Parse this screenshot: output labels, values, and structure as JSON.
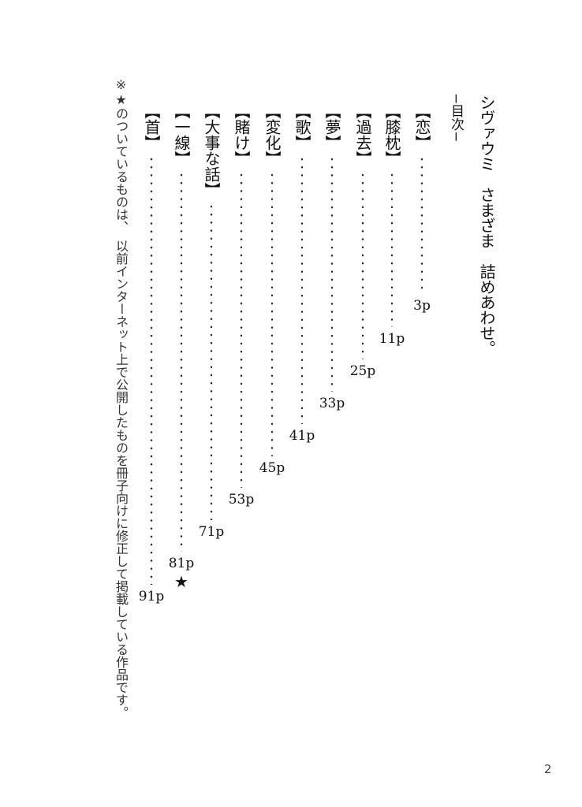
{
  "title": "シヴァウミ　さまざま　詰めあわせ。",
  "toc_heading": "−目次−",
  "entries": [
    {
      "label": "【恋】",
      "page": "3p",
      "marked": false
    },
    {
      "label": "【膝枕】",
      "page": "11p",
      "marked": false
    },
    {
      "label": "【過去】",
      "page": "25p",
      "marked": false
    },
    {
      "label": "【夢】",
      "page": "33p",
      "marked": false
    },
    {
      "label": "【歌】",
      "page": "41p",
      "marked": false
    },
    {
      "label": "【変化】",
      "page": "45p",
      "marked": false
    },
    {
      "label": "【賭け】",
      "page": "53p",
      "marked": false
    },
    {
      "label": "【大事な話】",
      "page": "71p",
      "marked": false
    },
    {
      "label": "【一線】",
      "page": "81p",
      "marked": true,
      "mark": "★"
    },
    {
      "label": "【首】",
      "page": "91p",
      "marked": false
    }
  ],
  "note": "※★のついているものは、　以前インターネット上で公開したものを冊子向けに修正して掲載している作品です。",
  "page_number": "2"
}
